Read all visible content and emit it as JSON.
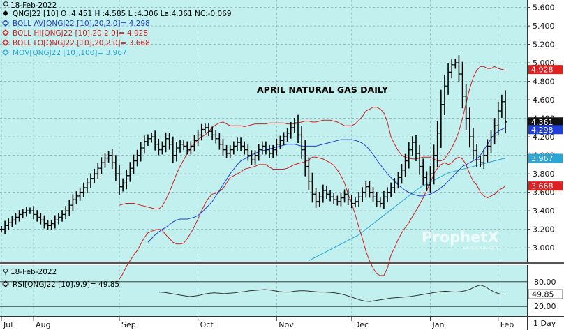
{
  "chart_data": {
    "type": "ohlc",
    "title": "APRIL NATURAL GAS DAILY",
    "header": {
      "date": "18-Feb-2022",
      "ohlc_line": "QNGJ22 [10] O :4.451 H :4.585 L :4.306 La:4.361 NC:-0.069",
      "bb_av_line": "BOLL AV[QNGJ22 [10],20,2.0]= 4.298",
      "bb_hi_line": "BOLL HI[QNGJ22 [10],20,2.0]= 4.928",
      "bb_lo_line": "BOLL LO[QNGJ22 [10],20,2.0]= 3.668",
      "mov_line": "MOV[QNGJ22 [10],100]= 3.967"
    },
    "y_axis": {
      "min": 2.85,
      "max": 5.68,
      "ticks": [
        "5.600",
        "5.400",
        "5.200",
        "5.000",
        "4.800",
        "4.600",
        "4.400",
        "4.200",
        "4.000",
        "3.800",
        "3.600",
        "3.400",
        "3.200",
        "3.000"
      ]
    },
    "price_tags": [
      {
        "label": "4.928",
        "value": 4.928,
        "color": "#e02020"
      },
      {
        "label": "4.361",
        "value": 4.361,
        "color": "#111111"
      },
      {
        "label": "4.298",
        "value": 4.298,
        "color": "#1f3fd6"
      },
      {
        "label": "3.967",
        "value": 3.967,
        "color": "#2aa6d8"
      },
      {
        "label": "3.668",
        "value": 3.668,
        "color": "#e02020"
      }
    ],
    "x_axis": {
      "months": [
        {
          "label": "Jul",
          "at": 0
        },
        {
          "label": "Aug",
          "at": 9
        },
        {
          "label": "Sep",
          "at": 33
        },
        {
          "label": "Oct",
          "at": 55
        },
        {
          "label": "Nov",
          "at": 77
        },
        {
          "label": "Dec",
          "at": 98
        },
        {
          "label": "Jan",
          "at": 120
        },
        {
          "label": "Feb",
          "at": 139
        }
      ],
      "periodicity": "1 Day"
    },
    "price_path": [
      3.2,
      3.24,
      3.27,
      3.3,
      3.33,
      3.36,
      3.38,
      3.4,
      3.4,
      3.36,
      3.33,
      3.3,
      3.26,
      3.24,
      3.26,
      3.3,
      3.33,
      3.36,
      3.4,
      3.46,
      3.52,
      3.56,
      3.6,
      3.65,
      3.7,
      3.75,
      3.8,
      3.86,
      3.92,
      3.97,
      4.0,
      3.92,
      3.8,
      3.66,
      3.7,
      3.78,
      3.86,
      3.94,
      4.0,
      4.08,
      4.15,
      4.18,
      4.2,
      4.12,
      4.06,
      4.1,
      4.18,
      4.12,
      4.0,
      4.08,
      4.12,
      4.1,
      4.06,
      4.1,
      4.16,
      4.22,
      4.28,
      4.3,
      4.26,
      4.22,
      4.18,
      4.12,
      4.06,
      4.02,
      4.06,
      4.1,
      4.14,
      4.1,
      4.06,
      4.0,
      3.95,
      4.0,
      4.06,
      4.1,
      4.06,
      4.02,
      4.06,
      4.12,
      4.16,
      4.2,
      4.24,
      4.3,
      4.35,
      4.22,
      4.06,
      3.88,
      3.72,
      3.58,
      3.5,
      3.55,
      3.62,
      3.58,
      3.55,
      3.52,
      3.5,
      3.54,
      3.58,
      3.52,
      3.48,
      3.5,
      3.55,
      3.6,
      3.66,
      3.6,
      3.55,
      3.5,
      3.48,
      3.55,
      3.6,
      3.65,
      3.7,
      3.76,
      3.84,
      3.94,
      4.06,
      4.14,
      4.02,
      3.88,
      3.76,
      3.68,
      3.8,
      4.0,
      4.24,
      4.55,
      4.75,
      4.9,
      4.98,
      5.0,
      4.88,
      4.64,
      4.4,
      4.2,
      4.05,
      3.95,
      3.92,
      4.0,
      4.1,
      4.2,
      4.32,
      4.48,
      4.58,
      4.36
    ],
    "boll_hi": [
      3.46,
      3.47,
      3.48,
      3.48,
      3.48,
      3.47,
      3.46,
      3.45,
      3.44,
      3.43,
      3.42,
      3.42,
      3.45,
      3.52,
      3.6,
      3.7,
      3.8,
      3.88,
      3.95,
      4.02,
      4.08,
      4.13,
      4.17,
      4.2,
      4.22,
      4.26,
      4.3,
      4.33,
      4.35,
      4.36,
      4.34,
      4.32,
      4.32,
      4.32,
      4.32,
      4.31,
      4.32,
      4.33,
      4.34,
      4.34,
      4.34,
      4.34,
      4.35,
      4.35,
      4.35,
      4.35,
      4.35,
      4.34,
      4.34,
      4.34,
      4.35,
      4.36,
      4.37,
      4.37,
      4.36,
      4.36,
      4.37,
      4.38,
      4.38,
      4.38,
      4.37,
      4.36,
      4.34,
      4.32,
      4.32,
      4.32,
      4.34,
      4.38,
      4.42,
      4.48,
      4.5,
      4.52,
      4.52,
      4.5,
      4.46,
      4.36,
      4.2,
      4.12,
      4.05,
      4.0,
      3.98,
      3.97,
      3.96,
      3.96,
      3.97,
      3.98,
      3.98,
      3.98,
      3.96,
      3.94,
      3.94,
      3.96,
      4.02,
      4.08,
      4.16,
      4.26,
      4.4,
      4.56,
      4.72,
      4.84,
      4.92,
      4.96,
      4.96,
      4.94,
      4.94,
      4.96,
      4.94,
      4.93,
      4.92
    ],
    "boll_av": [
      3.06,
      3.1,
      3.14,
      3.17,
      3.2,
      3.22,
      3.25,
      3.28,
      3.3,
      3.31,
      3.31,
      3.31,
      3.32,
      3.33,
      3.35,
      3.38,
      3.42,
      3.46,
      3.5,
      3.56,
      3.62,
      3.68,
      3.74,
      3.8,
      3.85,
      3.9,
      3.94,
      3.96,
      3.98,
      4.0,
      4.02,
      4.04,
      4.05,
      4.06,
      4.07,
      4.08,
      4.09,
      4.1,
      4.11,
      4.12,
      4.12,
      4.12,
      4.11,
      4.1,
      4.1,
      4.1,
      4.1,
      4.1,
      4.11,
      4.12,
      4.13,
      4.14,
      4.15,
      4.16,
      4.17,
      4.17,
      4.17,
      4.17,
      4.16,
      4.15,
      4.13,
      4.1,
      4.06,
      4.01,
      3.95,
      3.9,
      3.85,
      3.8,
      3.76,
      3.72,
      3.68,
      3.65,
      3.62,
      3.6,
      3.58,
      3.57,
      3.56,
      3.56,
      3.57,
      3.58,
      3.6,
      3.62,
      3.65,
      3.68,
      3.72,
      3.76,
      3.8,
      3.84,
      3.88,
      3.9,
      3.92,
      3.94,
      3.96,
      4.0,
      4.06,
      4.12,
      4.18,
      4.23,
      4.26,
      4.28,
      4.3
    ],
    "boll_lo": [
      2.66,
      2.72,
      2.8,
      2.86,
      2.92,
      2.97,
      3.04,
      3.11,
      3.16,
      3.18,
      3.19,
      3.2,
      3.19,
      3.14,
      3.1,
      3.06,
      3.04,
      3.04,
      3.05,
      3.1,
      3.16,
      3.23,
      3.31,
      3.4,
      3.48,
      3.54,
      3.58,
      3.59,
      3.61,
      3.64,
      3.7,
      3.76,
      3.78,
      3.8,
      3.82,
      3.85,
      3.86,
      3.87,
      3.88,
      3.9,
      3.9,
      3.9,
      3.87,
      3.85,
      3.85,
      3.85,
      3.85,
      3.86,
      3.88,
      3.9,
      3.91,
      3.92,
      3.93,
      3.95,
      3.98,
      3.98,
      3.97,
      3.96,
      3.94,
      3.92,
      3.89,
      3.84,
      3.78,
      3.7,
      3.58,
      3.48,
      3.36,
      3.22,
      3.1,
      2.96,
      2.86,
      2.78,
      2.72,
      2.7,
      2.7,
      2.78,
      2.92,
      3.0,
      3.09,
      3.16,
      3.22,
      3.27,
      3.34,
      3.4,
      3.47,
      3.54,
      3.62,
      3.7,
      3.8,
      3.86,
      3.9,
      3.92,
      3.9,
      3.92,
      3.96,
      3.98,
      3.96,
      3.9,
      3.8,
      3.72,
      3.68,
      3.6,
      3.56,
      3.54,
      3.56,
      3.58,
      3.62,
      3.64,
      3.668
    ],
    "mov_100": [
      2.86,
      2.88,
      2.9,
      2.92,
      2.94,
      2.96,
      2.98,
      3.0,
      3.02,
      3.04,
      3.06,
      3.08,
      3.1,
      3.12,
      3.14,
      3.17,
      3.2,
      3.23,
      3.26,
      3.29,
      3.32,
      3.35,
      3.38,
      3.41,
      3.44,
      3.47,
      3.5,
      3.53,
      3.56,
      3.59,
      3.62,
      3.65,
      3.67,
      3.69,
      3.71,
      3.73,
      3.75,
      3.77,
      3.79,
      3.81,
      3.82,
      3.83,
      3.84,
      3.85,
      3.86,
      3.87,
      3.88,
      3.89,
      3.9,
      3.91,
      3.92,
      3.93,
      3.94,
      3.95,
      3.96,
      3.967
    ],
    "rsi_panel": {
      "date": "18-Feb-2022",
      "legend": "RSI[QNGJ22 [10],9,9]= 49.85",
      "value": 49.85,
      "ticks": [
        "80.00",
        "20.00"
      ],
      "value_label": "49.85",
      "path": [
        55,
        54,
        52,
        50,
        48,
        46,
        44,
        45,
        47,
        50,
        52,
        53,
        52,
        51,
        52,
        53,
        55,
        56,
        58,
        59,
        60,
        61,
        60,
        58,
        56,
        55,
        55,
        57,
        58,
        58,
        57,
        56,
        55,
        55,
        54,
        53,
        51,
        48,
        44,
        40,
        36,
        33,
        32,
        34,
        36,
        38,
        40,
        41,
        42,
        43,
        44,
        46,
        48,
        50,
        52,
        54,
        56,
        57,
        56,
        55,
        56,
        58,
        62,
        68,
        72,
        68,
        60,
        54,
        50,
        49.85
      ]
    }
  }
}
